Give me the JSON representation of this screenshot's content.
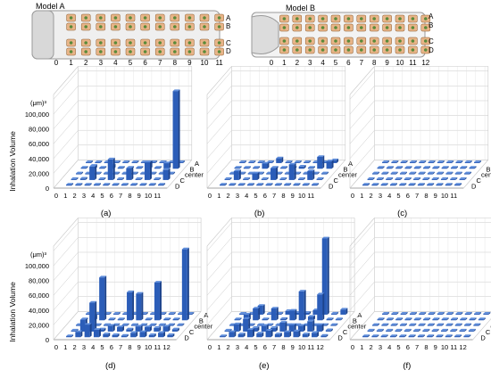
{
  "models": [
    {
      "name": "Model A",
      "row_labels": [
        "A",
        "B",
        "C",
        "D"
      ],
      "seat_numbers": [
        "0",
        "1",
        "2",
        "3",
        "4",
        "5",
        "6",
        "7",
        "8",
        "9",
        "10",
        "11"
      ]
    },
    {
      "name": "Model B",
      "row_labels": [
        "A",
        "B",
        "C",
        "D"
      ],
      "seat_numbers": [
        "0",
        "1",
        "2",
        "3",
        "4",
        "5",
        "6",
        "7",
        "8",
        "9",
        "10",
        "11",
        "12"
      ]
    }
  ],
  "ylabel": "Inhalation Volume",
  "unit": "(μm)³",
  "yticks": [
    "0",
    "20,000",
    "40,000",
    "60,000",
    "80,000",
    "100,000"
  ],
  "depth_labels": [
    "A",
    "B",
    "center",
    "C",
    "D"
  ],
  "colors": {
    "bar": "#2b5db8",
    "bar_light": "#5e8ddb",
    "grid": "#c8c8c8",
    "bus_fill": "#e8b488"
  },
  "chart_data": [
    {
      "panel": "(a)",
      "type": "bar3d",
      "model": "Model A",
      "x": [
        0,
        1,
        2,
        3,
        4,
        5,
        6,
        7,
        8,
        9,
        10,
        11
      ],
      "ylim": [
        0,
        100000
      ],
      "series": [
        {
          "name": "A",
          "values": [
            0,
            600,
            600,
            600,
            600,
            600,
            600,
            600,
            1200,
            1000,
            1200,
            800
          ]
        },
        {
          "name": "B",
          "values": [
            0,
            500,
            4000,
            600,
            4500,
            700,
            1500,
            600,
            9000,
            700,
            7500,
            105000
          ]
        },
        {
          "name": "center",
          "values": [
            0,
            500,
            500,
            500,
            500,
            500,
            500,
            500,
            500,
            500,
            500,
            500
          ]
        },
        {
          "name": "C",
          "values": [
            0,
            500,
            2000,
            18000,
            500,
            28000,
            600,
            16000,
            500,
            24000,
            500,
            14000
          ]
        },
        {
          "name": "D",
          "values": [
            0,
            400,
            400,
            400,
            400,
            400,
            400,
            400,
            400,
            400,
            400,
            400
          ]
        }
      ]
    },
    {
      "panel": "(b)",
      "type": "bar3d",
      "model": "Model A",
      "x": [
        0,
        1,
        2,
        3,
        4,
        5,
        6,
        7,
        8,
        9,
        10,
        11
      ],
      "ylim": [
        0,
        100000
      ],
      "series": [
        {
          "name": "A",
          "values": [
            0,
            600,
            600,
            600,
            600,
            6500,
            600,
            600,
            600,
            600,
            1000,
            4000
          ]
        },
        {
          "name": "B",
          "values": [
            0,
            500,
            500,
            1000,
            7000,
            500,
            900,
            1200,
            3000,
            900,
            16000,
            10000
          ]
        },
        {
          "name": "center",
          "values": [
            0,
            500,
            500,
            500,
            500,
            500,
            500,
            500,
            500,
            500,
            500,
            500
          ]
        },
        {
          "name": "C",
          "values": [
            0,
            500,
            12000,
            500,
            9000,
            500,
            16000,
            500,
            21000,
            500,
            12000,
            500
          ]
        },
        {
          "name": "D",
          "values": [
            0,
            400,
            400,
            400,
            400,
            400,
            400,
            400,
            400,
            400,
            400,
            400
          ]
        }
      ]
    },
    {
      "panel": "(c)",
      "type": "bar3d",
      "model": "Model A",
      "x": [
        0,
        1,
        2,
        3,
        4,
        5,
        6,
        7,
        8,
        9,
        10,
        11
      ],
      "ylim": [
        0,
        100000
      ],
      "series": [
        {
          "name": "A",
          "values": [
            0,
            500,
            500,
            500,
            500,
            500,
            500,
            500,
            500,
            500,
            500,
            500
          ]
        },
        {
          "name": "B",
          "values": [
            0,
            500,
            500,
            500,
            500,
            500,
            500,
            500,
            500,
            500,
            500,
            500
          ]
        },
        {
          "name": "center",
          "values": [
            0,
            400,
            400,
            400,
            400,
            400,
            400,
            400,
            400,
            400,
            400,
            400
          ]
        },
        {
          "name": "C",
          "values": [
            0,
            500,
            500,
            500,
            500,
            500,
            500,
            500,
            500,
            500,
            500,
            500
          ]
        },
        {
          "name": "D",
          "values": [
            0,
            500,
            500,
            500,
            500,
            500,
            500,
            500,
            500,
            500,
            500,
            500
          ]
        }
      ]
    },
    {
      "panel": "(d)",
      "type": "bar3d",
      "model": "Model B",
      "x": [
        0,
        1,
        2,
        3,
        4,
        5,
        6,
        7,
        8,
        9,
        10,
        11,
        12
      ],
      "ylim": [
        0,
        100000
      ],
      "series": [
        {
          "name": "A",
          "values": [
            0,
            500,
            500,
            500,
            500,
            500,
            500,
            500,
            500,
            500,
            500,
            500,
            500
          ]
        },
        {
          "name": "B",
          "values": [
            0,
            600,
            6000,
            58000,
            1000,
            1000,
            38000,
            36000,
            1000,
            51000,
            1500,
            1500,
            96000
          ]
        },
        {
          "name": "center",
          "values": [
            0,
            500,
            500,
            500,
            500,
            500,
            500,
            500,
            500,
            500,
            500,
            500,
            500
          ]
        },
        {
          "name": "C",
          "values": [
            0,
            700,
            16000,
            39000,
            3000,
            8000,
            6000,
            3000,
            7000,
            6000,
            5000,
            7000,
            3000
          ]
        },
        {
          "name": "D",
          "values": [
            0,
            1000,
            7000,
            17000,
            10000,
            4000,
            3000,
            2000,
            6000,
            7000,
            3000,
            6000,
            3000
          ]
        }
      ]
    },
    {
      "panel": "(e)",
      "type": "bar3d",
      "model": "Model B",
      "x": [
        0,
        1,
        2,
        3,
        4,
        5,
        6,
        7,
        8,
        9,
        10,
        11,
        12
      ],
      "ylim": [
        0,
        100000
      ],
      "series": [
        {
          "name": "A",
          "values": [
            0,
            600,
            600,
            12000,
            600,
            1500,
            5000,
            2500,
            2500,
            6000,
            103000,
            1500,
            7000
          ]
        },
        {
          "name": "B",
          "values": [
            0,
            700,
            8000,
            16000,
            1500,
            16000,
            2000,
            13000,
            39000,
            5000,
            35000,
            1500,
            1000
          ]
        },
        {
          "name": "center",
          "values": [
            0,
            500,
            500,
            500,
            500,
            500,
            500,
            500,
            500,
            500,
            500,
            500,
            500
          ]
        },
        {
          "name": "C",
          "values": [
            0,
            900,
            10000,
            17000,
            5000,
            8000,
            5000,
            12000,
            9000,
            8000,
            14000,
            9000,
            2000
          ]
        },
        {
          "name": "D",
          "values": [
            0,
            800,
            7000,
            4000,
            10000,
            5000,
            9000,
            4000,
            7000,
            8000,
            4000,
            6000,
            2000
          ]
        }
      ]
    },
    {
      "panel": "(f)",
      "type": "bar3d",
      "model": "Model B",
      "x": [
        0,
        1,
        2,
        3,
        4,
        5,
        6,
        7,
        8,
        9,
        10,
        11,
        12
      ],
      "ylim": [
        0,
        100000
      ],
      "series": [
        {
          "name": "A",
          "values": [
            0,
            500,
            500,
            500,
            500,
            500,
            500,
            500,
            500,
            500,
            500,
            500,
            500
          ]
        },
        {
          "name": "B",
          "values": [
            0,
            500,
            500,
            500,
            500,
            500,
            500,
            500,
            500,
            500,
            500,
            500,
            500
          ]
        },
        {
          "name": "center",
          "values": [
            0,
            400,
            400,
            400,
            400,
            400,
            400,
            400,
            400,
            400,
            400,
            400,
            400
          ]
        },
        {
          "name": "C",
          "values": [
            0,
            500,
            500,
            500,
            500,
            500,
            500,
            500,
            500,
            500,
            500,
            500,
            500
          ]
        },
        {
          "name": "D",
          "values": [
            0,
            500,
            500,
            500,
            500,
            500,
            500,
            500,
            500,
            500,
            500,
            500,
            500
          ]
        }
      ]
    }
  ]
}
